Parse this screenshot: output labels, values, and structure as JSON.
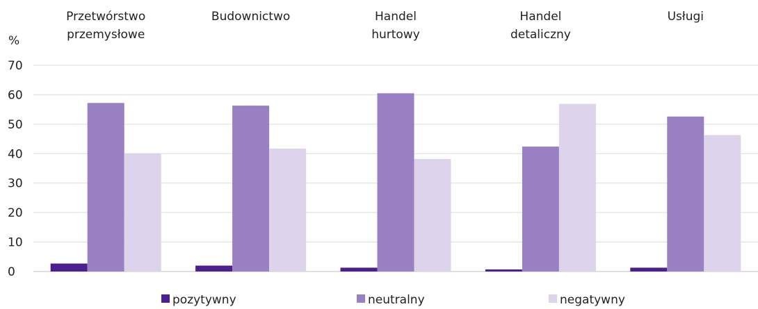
{
  "chart_data": {
    "type": "bar",
    "title": "",
    "xlabel": "",
    "ylabel": "%",
    "ylim": [
      0,
      70
    ],
    "yticks": [
      0,
      10,
      20,
      30,
      40,
      50,
      60,
      70
    ],
    "grid": true,
    "legend_position": "bottom",
    "categories": [
      [
        "Przetwórstwo",
        "przemysłowe"
      ],
      [
        "Budownictwo"
      ],
      [
        "Handel",
        "hurtowy"
      ],
      [
        "Handel",
        "detaliczny"
      ],
      [
        "Usługi"
      ]
    ],
    "series": [
      {
        "name": "pozytywny",
        "color": "#4b1f8f",
        "values": [
          2.7,
          2.0,
          1.3,
          0.7,
          1.3
        ]
      },
      {
        "name": "neutralny",
        "color": "#9980c2",
        "values": [
          57.2,
          56.3,
          60.5,
          42.4,
          52.6
        ]
      },
      {
        "name": "negatywny",
        "color": "#ddd3ea",
        "values": [
          40.1,
          41.7,
          38.2,
          56.9,
          46.3
        ]
      }
    ]
  }
}
